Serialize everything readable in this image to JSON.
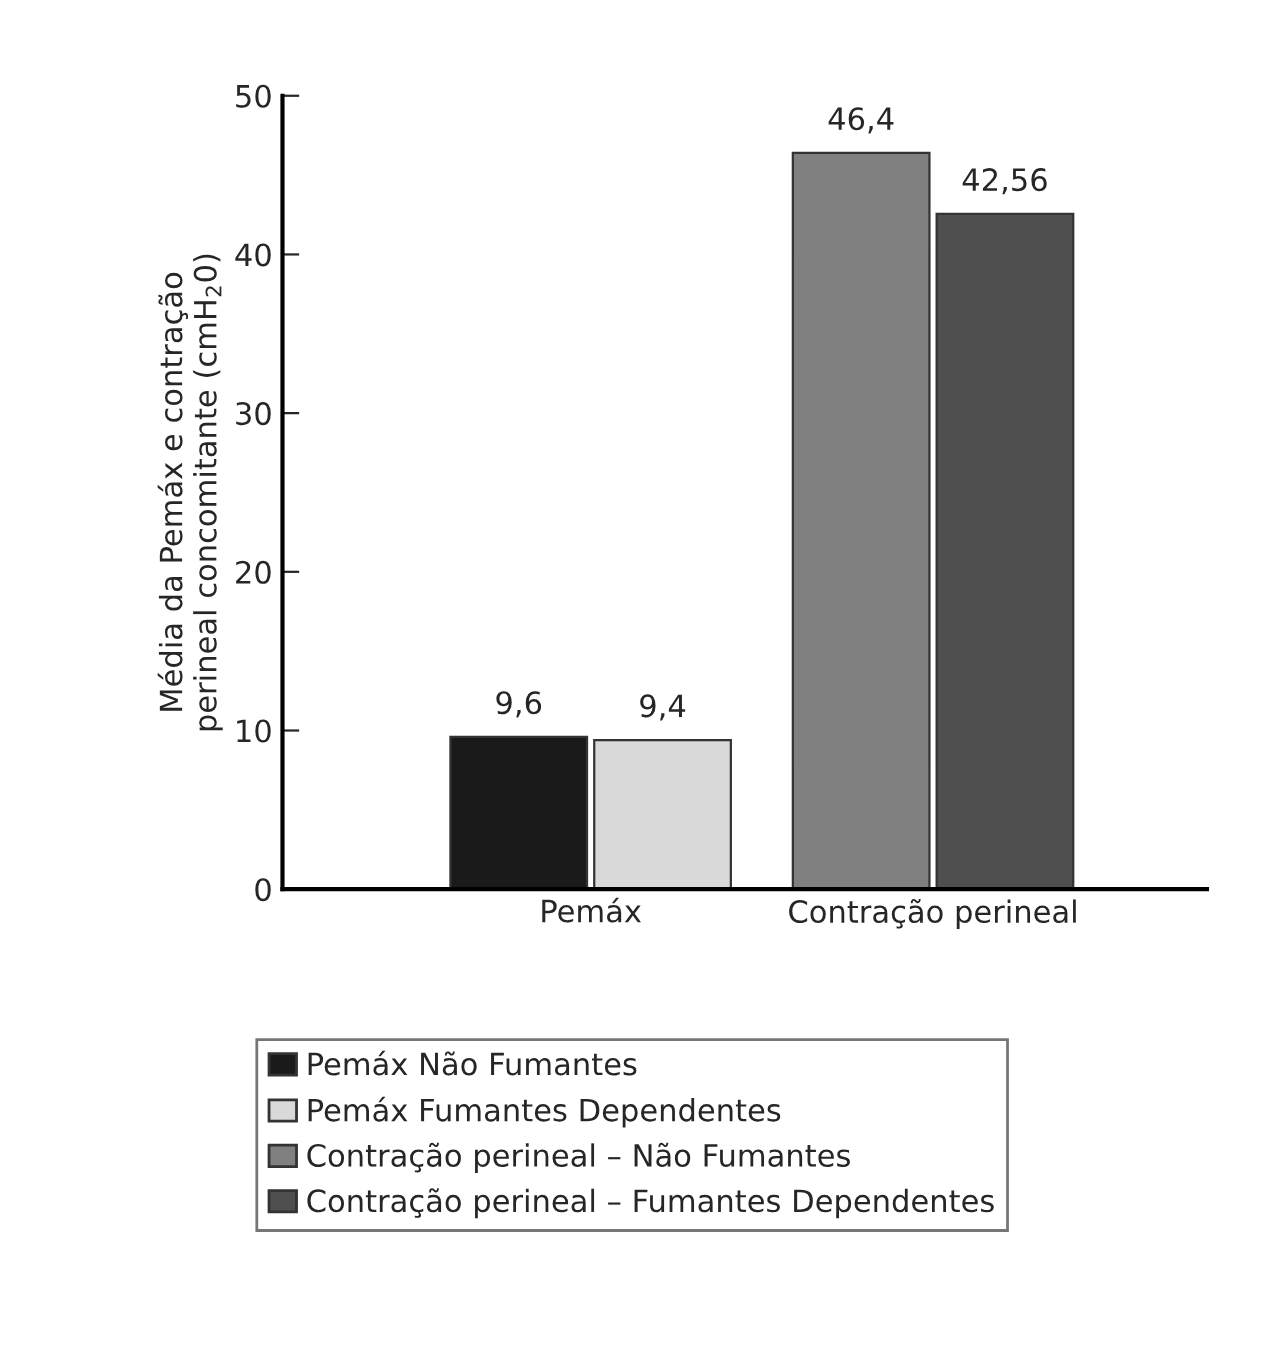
{
  "chart_data": {
    "type": "bar",
    "ylabel": "Média da Pemáx e contração\nperineal concomitante (cmH$_{2}$0)",
    "categories": [
      "Pemáx",
      "Contração perineal"
    ],
    "series": [
      {
        "name": "Pemáx Não Fumantes",
        "color": "#1a1a1a",
        "values": [
          9.6,
          null
        ],
        "value_labels": [
          "9,6",
          null
        ]
      },
      {
        "name": "Pemáx Fumantes Dependentes",
        "color": "#d9d9d9",
        "values": [
          9.4,
          null
        ],
        "value_labels": [
          "9,4",
          null
        ]
      },
      {
        "name": "Contração perineal – Não Fumantes",
        "color": "#808080",
        "values": [
          null,
          46.4
        ],
        "value_labels": [
          null,
          "46,4"
        ]
      },
      {
        "name": "Contração perineal – Fumantes Dependentes",
        "color": "#4f4f4f",
        "values": [
          null,
          42.56
        ],
        "value_labels": [
          null,
          "42,56"
        ]
      }
    ],
    "ylim": [
      0,
      50
    ],
    "yticks": [
      0,
      10,
      20,
      30,
      40,
      50
    ],
    "grid": false,
    "legend": "bottom"
  }
}
